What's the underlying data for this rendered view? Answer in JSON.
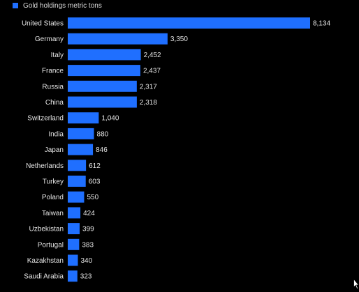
{
  "legend": {
    "label": "Gold holdings metric tons",
    "color": "#1f6fff"
  },
  "chart_data": {
    "type": "bar",
    "orientation": "horizontal",
    "title": "",
    "xlabel": "",
    "ylabel": "",
    "categories": [
      "United States",
      "Germany",
      "Italy",
      "France",
      "Russia",
      "China",
      "Switzerland",
      "India",
      "Japan",
      "Netherlands",
      "Turkey",
      "Poland",
      "Taiwan",
      "Uzbekistan",
      "Portugal",
      "Kazakhstan",
      "Saudi Arabia"
    ],
    "series": [
      {
        "name": "Gold holdings metric tons",
        "values": [
          8134,
          3350,
          2452,
          2437,
          2317,
          2318,
          1040,
          880,
          846,
          612,
          603,
          550,
          424,
          399,
          383,
          340,
          323
        ],
        "value_labels": [
          "8,134",
          "3,350",
          "2,452",
          "2,437",
          "2,317",
          "2,318",
          "1,040",
          "880",
          "846",
          "612",
          "603",
          "550",
          "424",
          "399",
          "383",
          "340",
          "323"
        ]
      }
    ],
    "xlim": [
      0,
      8134
    ],
    "grid": false,
    "legend_position": "top-left",
    "bar_color": "#1f6fff",
    "background": "#000000"
  }
}
